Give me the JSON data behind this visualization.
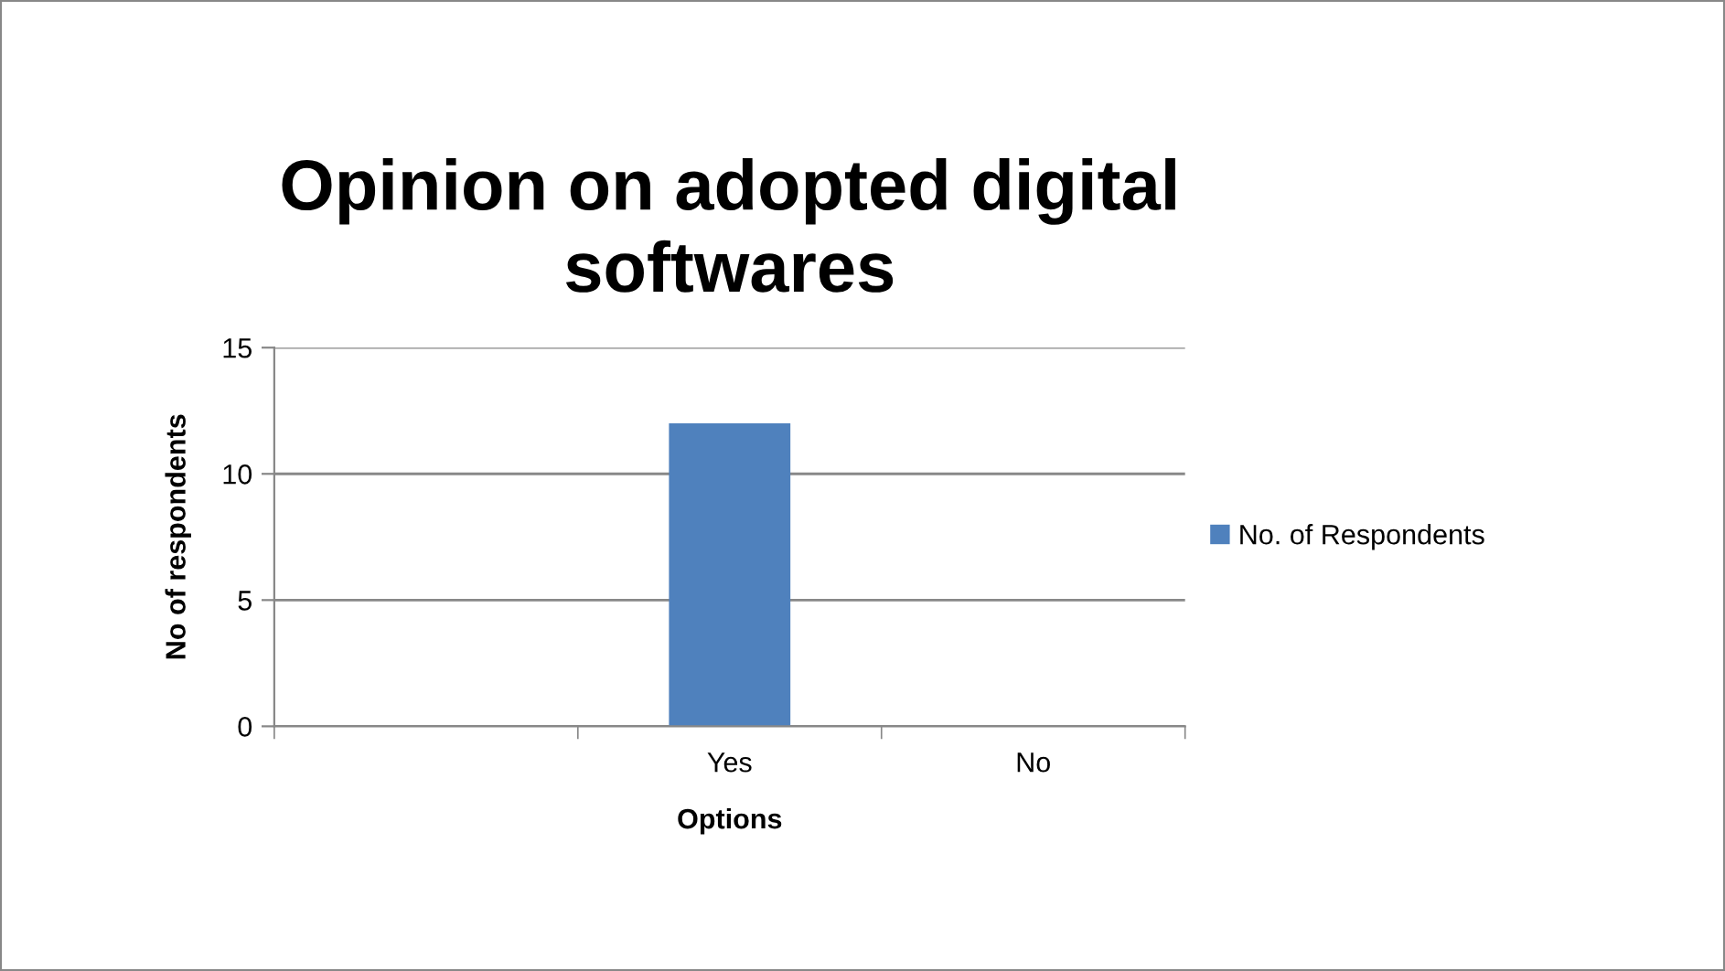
{
  "chart_data": {
    "type": "bar",
    "title": "Opinion on adopted digital softwares",
    "xlabel": "Options",
    "ylabel": "No of respondents",
    "categories": [
      null,
      "Yes",
      "No"
    ],
    "series": [
      {
        "name": "No. of Respondents",
        "color": "#4f81bd",
        "values": [
          null,
          12,
          0
        ]
      }
    ],
    "ylim": [
      0,
      15
    ],
    "yticks": [
      0,
      5,
      10,
      15
    ],
    "grid": "y",
    "legend": "right"
  }
}
